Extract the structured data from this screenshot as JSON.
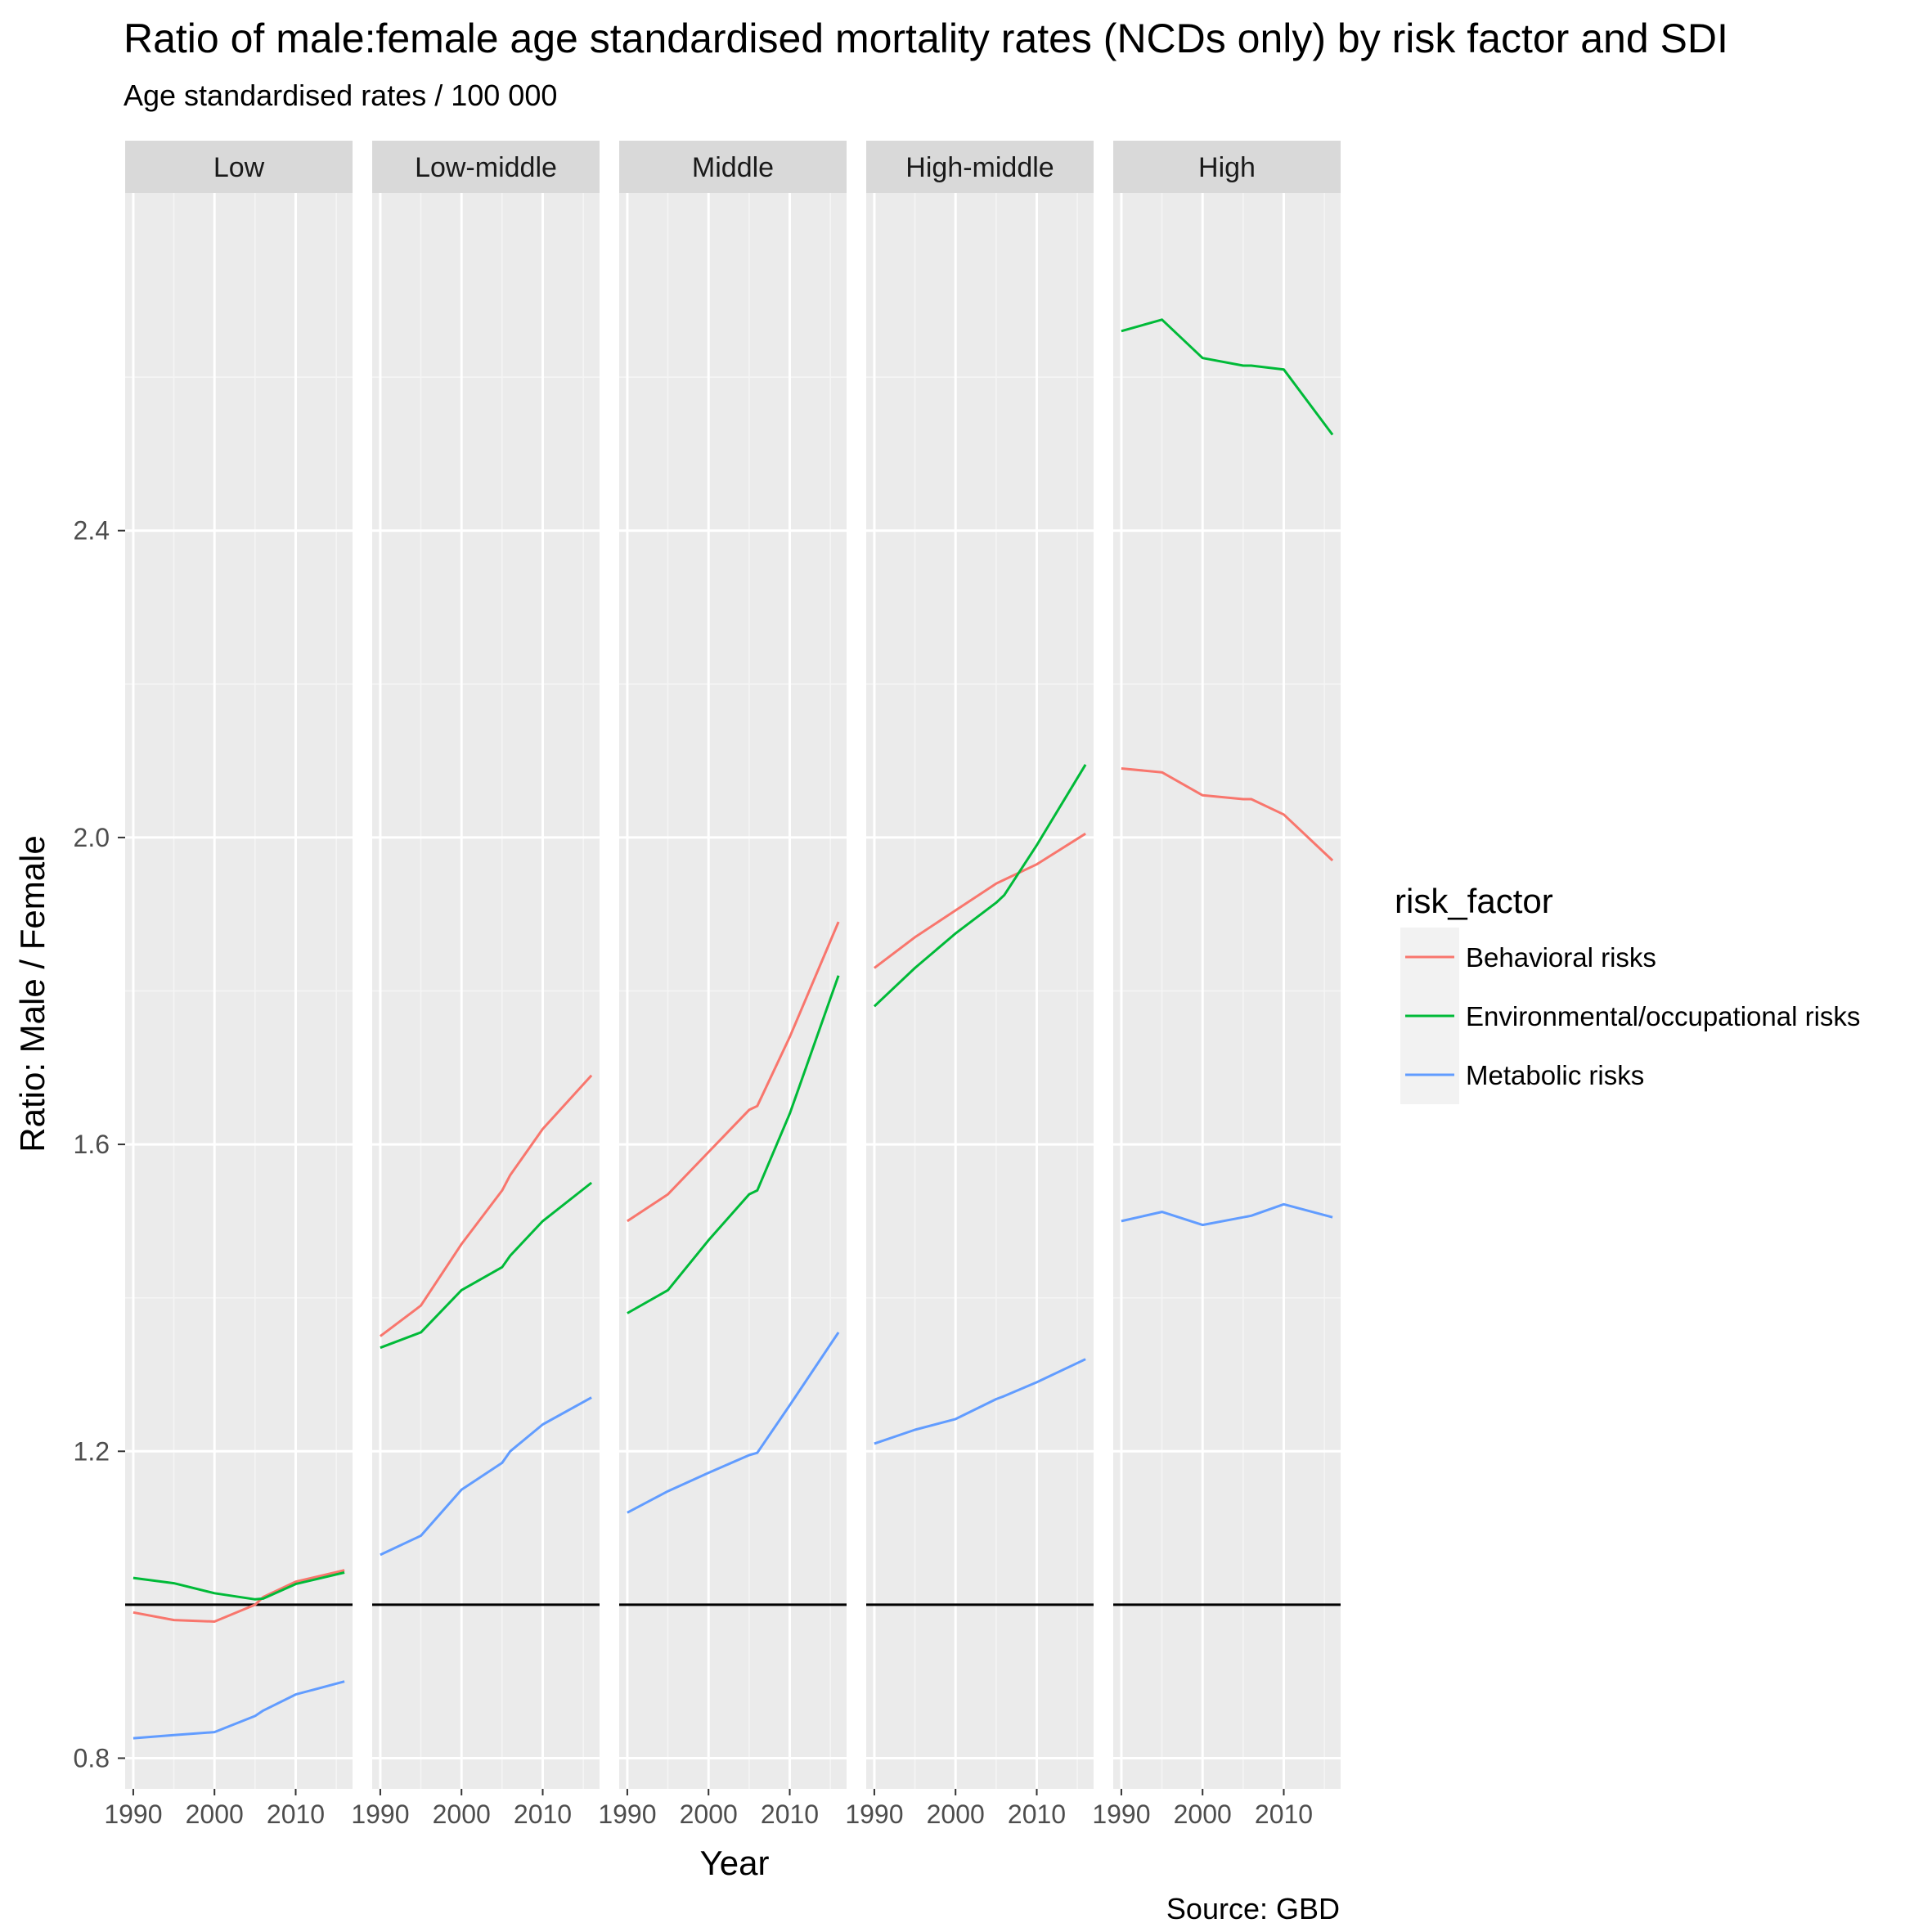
{
  "title": "Ratio of male:female age standardised mortality rates (NCDs only) by risk factor and SDI",
  "subtitle": "Age standardised rates / 100 000",
  "caption": "Source: GBD",
  "chart_data": {
    "type": "line",
    "facet_by": "SDI",
    "facets": [
      "Low",
      "Low-middle",
      "Middle",
      "High-middle",
      "High"
    ],
    "xlabel": "Year",
    "ylabel": "Ratio: Male / Female",
    "xlim": [
      1989,
      2017
    ],
    "ylim": [
      0.76,
      2.84
    ],
    "x_ticks": [
      1990,
      2000,
      2010
    ],
    "y_ticks": [
      0.8,
      1.2,
      1.6,
      2.0,
      2.4
    ],
    "reference_line": 1.0,
    "grid": true,
    "legend": {
      "title": "risk_factor",
      "position": "right"
    },
    "x": [
      1990,
      1995,
      2000,
      2005,
      2006,
      2010,
      2016
    ],
    "series": [
      {
        "name": "Behavioral risks",
        "color": "#F8766D",
        "facet_values": {
          "Low": [
            0.99,
            0.98,
            0.978,
            1.0,
            1.01,
            1.03,
            1.045
          ],
          "Low-middle": [
            1.35,
            1.39,
            1.47,
            1.54,
            1.56,
            1.62,
            1.69
          ],
          "Middle": [
            1.5,
            1.535,
            1.59,
            1.645,
            1.65,
            1.74,
            1.89
          ],
          "High-middle": [
            1.83,
            1.87,
            1.905,
            1.94,
            1.945,
            1.965,
            2.005
          ],
          "High": [
            2.09,
            2.085,
            2.055,
            2.05,
            2.05,
            2.03,
            1.97
          ]
        }
      },
      {
        "name": "Environmental/occupational risks",
        "color": "#00BA38",
        "facet_values": {
          "Low": [
            1.035,
            1.028,
            1.015,
            1.007,
            1.008,
            1.027,
            1.042
          ],
          "Low-middle": [
            1.335,
            1.355,
            1.41,
            1.44,
            1.455,
            1.5,
            1.55
          ],
          "Middle": [
            1.38,
            1.41,
            1.475,
            1.535,
            1.54,
            1.64,
            1.82
          ],
          "High-middle": [
            1.78,
            1.83,
            1.875,
            1.915,
            1.925,
            1.99,
            2.095
          ],
          "High": [
            2.66,
            2.675,
            2.625,
            2.615,
            2.615,
            2.61,
            2.525
          ]
        }
      },
      {
        "name": "Metabolic risks",
        "color": "#619CFF",
        "facet_values": {
          "Low": [
            0.826,
            0.83,
            0.834,
            0.855,
            0.862,
            0.883,
            0.9
          ],
          "Low-middle": [
            1.065,
            1.09,
            1.15,
            1.185,
            1.2,
            1.235,
            1.27
          ],
          "Middle": [
            1.12,
            1.148,
            1.172,
            1.195,
            1.198,
            1.26,
            1.355
          ],
          "High-middle": [
            1.21,
            1.228,
            1.242,
            1.268,
            1.272,
            1.29,
            1.32
          ],
          "High": [
            1.5,
            1.512,
            1.495,
            1.505,
            1.507,
            1.522,
            1.505
          ]
        }
      }
    ]
  }
}
